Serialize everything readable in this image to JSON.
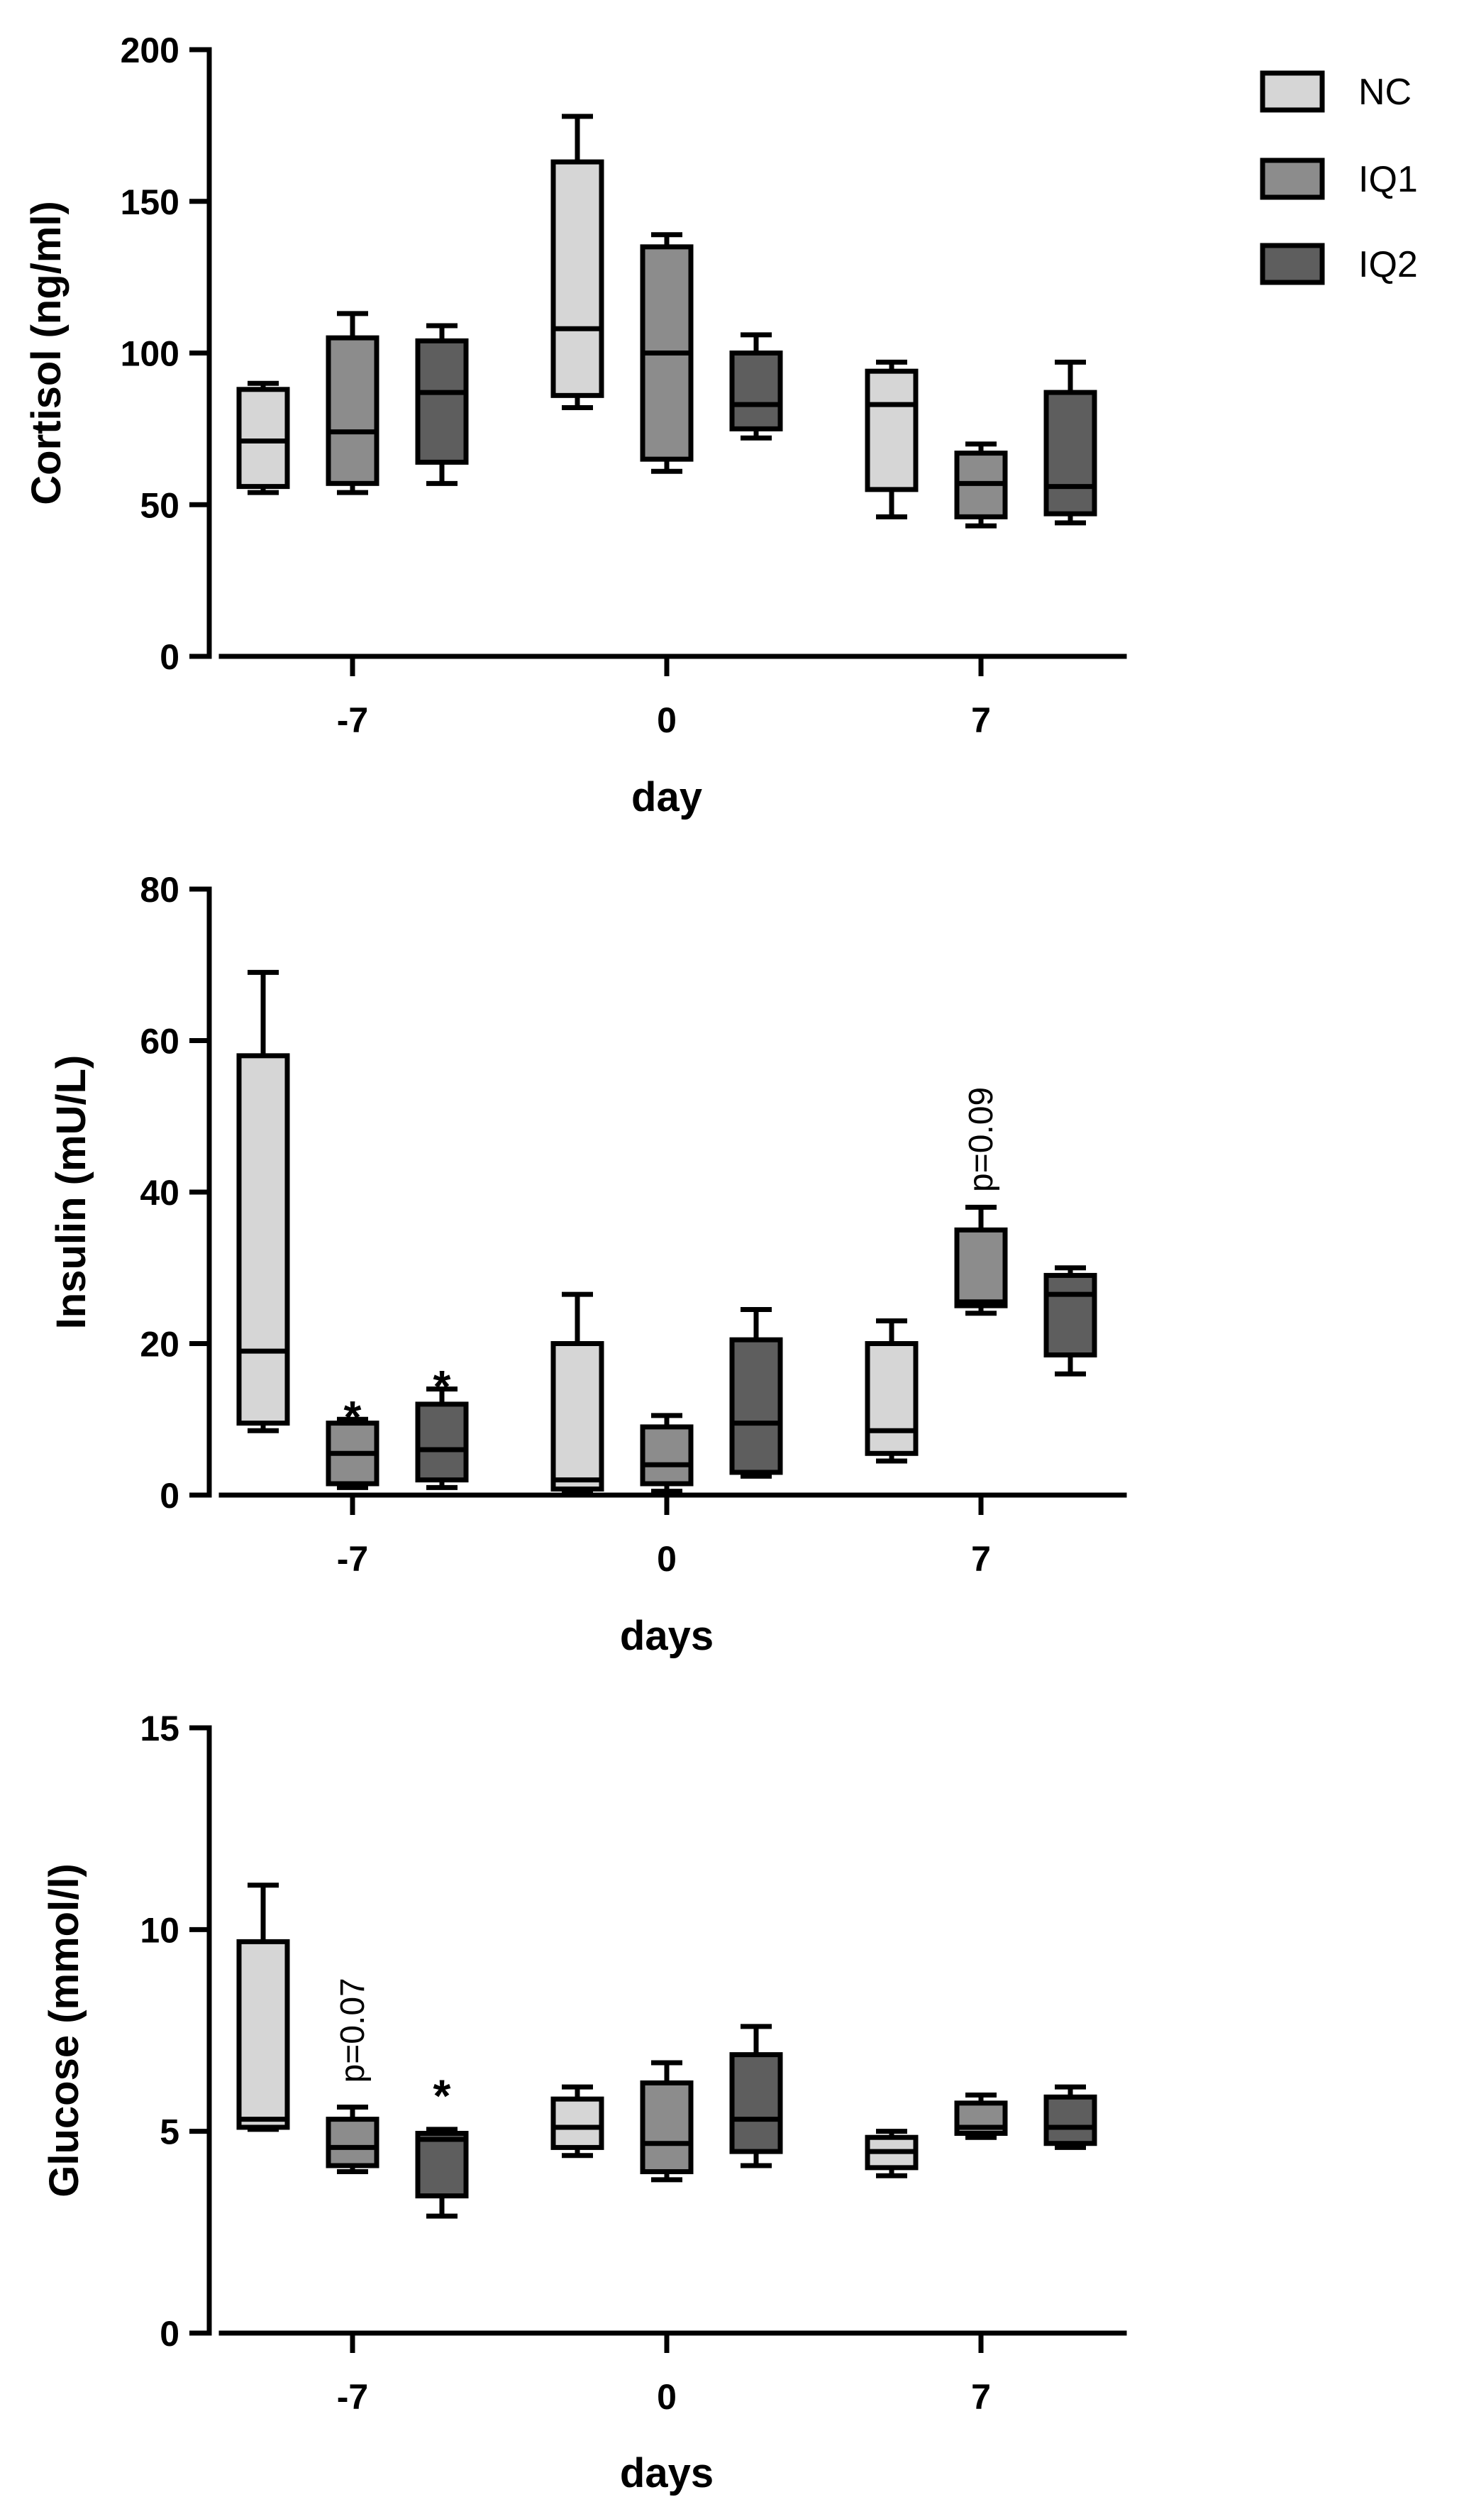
{
  "chart_data": [
    {
      "type": "box",
      "ylabel": "Cortisol (ng/ml)",
      "xlabel": "day",
      "ylim": [
        0,
        200
      ],
      "yticks": [
        "0",
        "50",
        "100",
        "150",
        "200"
      ],
      "ytick_values": [
        0,
        50,
        100,
        150,
        200
      ],
      "categories": [
        "-7",
        "0",
        "7"
      ],
      "series": [
        {
          "name": "NC",
          "boxes": [
            {
              "min": 54,
              "q1": 56,
              "median": 71,
              "q3": 88,
              "max": 90
            },
            {
              "min": 82,
              "q1": 86,
              "median": 108,
              "q3": 163,
              "max": 178
            },
            {
              "min": 46,
              "q1": 55,
              "median": 83,
              "q3": 94,
              "max": 97
            }
          ]
        },
        {
          "name": "IQ1",
          "boxes": [
            {
              "min": 54,
              "q1": 57,
              "median": 74,
              "q3": 105,
              "max": 113
            },
            {
              "min": 61,
              "q1": 65,
              "median": 100,
              "q3": 135,
              "max": 139
            },
            {
              "min": 43,
              "q1": 46,
              "median": 57,
              "q3": 67,
              "max": 70
            }
          ]
        },
        {
          "name": "IQ2",
          "boxes": [
            {
              "min": 57,
              "q1": 64,
              "median": 87,
              "q3": 104,
              "max": 109
            },
            {
              "min": 72,
              "q1": 75,
              "median": 83,
              "q3": 100,
              "max": 106
            },
            {
              "min": 44,
              "q1": 47,
              "median": 56,
              "q3": 87,
              "max": 97
            }
          ]
        }
      ],
      "annotations": []
    },
    {
      "type": "box",
      "ylabel": "Insulin (mU/L)",
      "xlabel": "days",
      "ylim": [
        0,
        80
      ],
      "yticks": [
        "0",
        "20",
        "40",
        "60",
        "80"
      ],
      "ytick_values": [
        0,
        20,
        40,
        60,
        80
      ],
      "categories": [
        "-7",
        "0",
        "7"
      ],
      "series": [
        {
          "name": "NC",
          "boxes": [
            {
              "min": 8.5,
              "q1": 9.5,
              "median": 19,
              "q3": 58,
              "max": 69
            },
            {
              "min": 0.5,
              "q1": 0.8,
              "median": 2,
              "q3": 20,
              "max": 26.5
            },
            {
              "min": 4.5,
              "q1": 5.5,
              "median": 8.5,
              "q3": 20,
              "max": 23
            }
          ]
        },
        {
          "name": "IQ1",
          "boxes": [
            {
              "min": 1,
              "q1": 1.5,
              "median": 5.5,
              "q3": 9.5,
              "max": 10
            },
            {
              "min": 0.5,
              "q1": 1.5,
              "median": 4,
              "q3": 9,
              "max": 10.5
            },
            {
              "min": 24,
              "q1": 25,
              "median": 25.5,
              "q3": 35,
              "max": 38
            }
          ]
        },
        {
          "name": "IQ2",
          "boxes": [
            {
              "min": 1,
              "q1": 2,
              "median": 6,
              "q3": 12,
              "max": 14
            },
            {
              "min": 2.5,
              "q1": 3,
              "median": 9.5,
              "q3": 20.5,
              "max": 24.5
            },
            {
              "min": 16,
              "q1": 18.5,
              "median": 26.5,
              "q3": 29,
              "max": 30
            }
          ]
        }
      ],
      "annotations": [
        {
          "text": "*",
          "category": 0,
          "series": 1,
          "y": 12,
          "rotate": false
        },
        {
          "text": "*",
          "category": 0,
          "series": 2,
          "y": 16,
          "rotate": false
        },
        {
          "text": "p=0.09",
          "category": 2,
          "series": 1,
          "y": 40,
          "rotate": true
        }
      ]
    },
    {
      "type": "box",
      "ylabel": "Glucose (mmol/l)",
      "xlabel": "days",
      "ylim": [
        0,
        15
      ],
      "yticks": [
        "0",
        "5",
        "10",
        "15"
      ],
      "ytick_values": [
        0,
        5,
        10,
        15
      ],
      "categories": [
        "-7",
        "0",
        "7"
      ],
      "series": [
        {
          "name": "NC",
          "boxes": [
            {
              "min": 5.05,
              "q1": 5.1,
              "median": 5.3,
              "q3": 9.7,
              "max": 11.1
            },
            {
              "min": 4.4,
              "q1": 4.6,
              "median": 5.1,
              "q3": 5.8,
              "max": 6.1
            },
            {
              "min": 3.9,
              "q1": 4.1,
              "median": 4.5,
              "q3": 4.85,
              "max": 5.0
            }
          ]
        },
        {
          "name": "IQ1",
          "boxes": [
            {
              "min": 4.0,
              "q1": 4.15,
              "median": 4.6,
              "q3": 5.3,
              "max": 5.6
            },
            {
              "min": 3.8,
              "q1": 4.0,
              "median": 4.7,
              "q3": 6.2,
              "max": 6.7
            },
            {
              "min": 4.85,
              "q1": 4.95,
              "median": 5.1,
              "q3": 5.7,
              "max": 5.9
            }
          ]
        },
        {
          "name": "IQ2",
          "boxes": [
            {
              "min": 2.9,
              "q1": 3.4,
              "median": 4.8,
              "q3": 4.95,
              "max": 5.05
            },
            {
              "min": 4.15,
              "q1": 4.5,
              "median": 5.3,
              "q3": 6.9,
              "max": 7.6
            },
            {
              "min": 4.6,
              "q1": 4.7,
              "median": 5.1,
              "q3": 5.85,
              "max": 6.1
            }
          ]
        }
      ],
      "annotations": [
        {
          "text": "p=0.07",
          "category": 0,
          "series": 1,
          "y": 6.2,
          "rotate": true
        },
        {
          "text": "*",
          "category": 0,
          "series": 2,
          "y": 6.2,
          "rotate": false
        }
      ]
    }
  ],
  "legend": {
    "items": [
      {
        "label": "NC",
        "color": "#d6d6d6"
      },
      {
        "label": "IQ1",
        "color": "#8c8c8c"
      },
      {
        "label": "IQ2",
        "color": "#5e5e5e"
      }
    ]
  }
}
